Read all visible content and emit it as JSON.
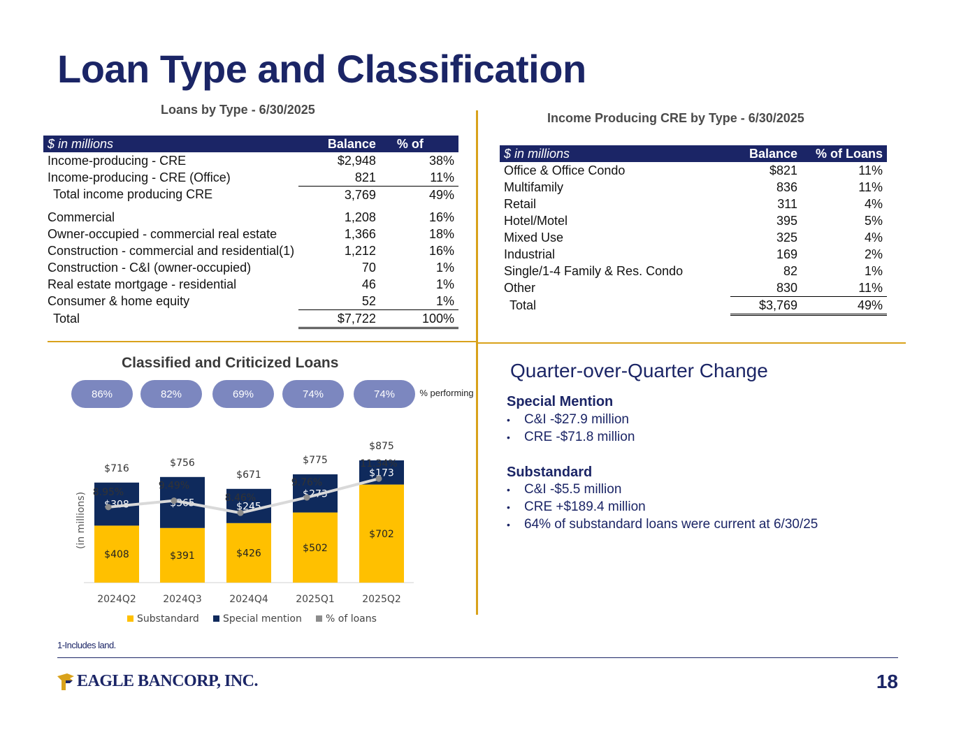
{
  "title": "Loan Type and Classification",
  "loans_table": {
    "title": "Loans by Type - 6/30/2025",
    "headers": [
      "$ in millions",
      "Balance",
      "% of"
    ],
    "rows": [
      {
        "label": "Income-producing - CRE",
        "balance": "$2,948",
        "pct": "38%"
      },
      {
        "label": "Income-producing - CRE (Office)",
        "balance": "821",
        "pct": "11%"
      },
      {
        "label": "Total income producing CRE",
        "balance": "3,769",
        "pct": "49%"
      },
      {
        "label": "Commercial",
        "balance": "1,208",
        "pct": "16%"
      },
      {
        "label": "Owner-occupied - commercial real estate",
        "balance": "1,366",
        "pct": "18%"
      },
      {
        "label": "Construction - commercial and residential(1)",
        "balance": "1,212",
        "pct": "16%"
      },
      {
        "label": "Construction - C&I (owner-occupied)",
        "balance": "70",
        "pct": "1%"
      },
      {
        "label": "Real estate mortgage - residential",
        "balance": "46",
        "pct": "1%"
      },
      {
        "label": "Consumer & home equity",
        "balance": "52",
        "pct": "1%"
      },
      {
        "label": "Total",
        "balance": "$7,722",
        "pct": "100%"
      }
    ]
  },
  "cre_table": {
    "title": "Income Producing CRE by Type - 6/30/2025",
    "headers": [
      "$ in millions",
      "Balance",
      "% of Loans"
    ],
    "rows": [
      {
        "label": "Office & Office Condo",
        "balance": "$821",
        "pct": "11%"
      },
      {
        "label": "Multifamily",
        "balance": "836",
        "pct": "11%"
      },
      {
        "label": "Retail",
        "balance": "311",
        "pct": "4%"
      },
      {
        "label": "Hotel/Motel",
        "balance": "395",
        "pct": "5%"
      },
      {
        "label": "Mixed Use",
        "balance": "325",
        "pct": "4%"
      },
      {
        "label": "Industrial",
        "balance": "169",
        "pct": "2%"
      },
      {
        "label": "Single/1-4 Family & Res. Condo",
        "balance": "82",
        "pct": "1%"
      },
      {
        "label": "Other",
        "balance": "830",
        "pct": "11%"
      },
      {
        "label": "Total",
        "balance": "$3,769",
        "pct": "49%"
      }
    ]
  },
  "chart_title": "Classified and Criticized Loans",
  "performing": {
    "values": [
      "86%",
      "82%",
      "69%",
      "74%",
      "74%"
    ],
    "label": "% performing"
  },
  "chart_data": {
    "type": "bar",
    "title": "Classified and Criticized Loans",
    "categories": [
      "2024Q2",
      "2024Q3",
      "2024Q4",
      "2025Q1",
      "2025Q2"
    ],
    "ylabel": "(in millions)",
    "series": [
      {
        "name": "Substandard",
        "values": [
          408,
          391,
          426,
          502,
          702
        ],
        "labels": [
          "$408",
          "$391",
          "$426",
          "$502",
          "$702"
        ],
        "color": "#ffc000"
      },
      {
        "name": "Special mention",
        "values": [
          308,
          365,
          245,
          273,
          173
        ],
        "labels": [
          "$308",
          "$365",
          "$245",
          "$273",
          "$173"
        ],
        "color": "#0f2a5c"
      },
      {
        "name": "% of loans",
        "values": [
          8.95,
          9.49,
          8.46,
          9.76,
          11.34
        ],
        "labels": [
          "8.95%",
          "9.49%",
          "8.46%",
          "9.76%",
          "11.34%"
        ],
        "color": "#8c8c8c"
      }
    ],
    "totals": [
      "$716",
      "$756",
      "$671",
      "$775",
      "$875"
    ],
    "legend_position": "bottom"
  },
  "qoq": {
    "title": "Quarter-over-Quarter Change",
    "special_mention": {
      "heading": "Special Mention",
      "items": [
        "C&I -$27.9 million",
        "CRE -$71.8 million"
      ]
    },
    "substandard": {
      "heading": "Substandard",
      "items": [
        "C&I -$5.5 million",
        "CRE +$189.4 million",
        "64% of substandard loans were current at 6/30/25"
      ]
    }
  },
  "footnote": "1-Includes land.",
  "logo_text": "EAGLE BANCORP, INC.",
  "page_number": "18",
  "colors": {
    "navy": "#1b2566",
    "gold": "#d9a21b",
    "substandard": "#ffc000",
    "special_mention": "#0f2a5c",
    "pill": "#7c87bf"
  }
}
